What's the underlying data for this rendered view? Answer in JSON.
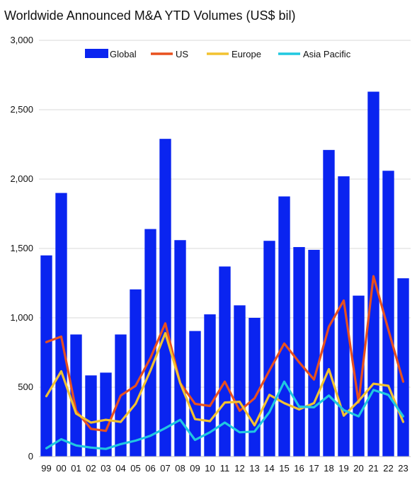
{
  "chart_data": {
    "type": "bar",
    "title": "Worldwide Announced M&A YTD Volumes (US$ bil)",
    "xlabel": "",
    "ylabel": "",
    "ylim": [
      0,
      3000
    ],
    "yticks": [
      0,
      500,
      1000,
      1500,
      2000,
      2500,
      3000
    ],
    "ytick_labels": [
      "0",
      "500",
      "1,000",
      "1,500",
      "2,000",
      "2,500",
      "3,000"
    ],
    "grid": true,
    "legend": "top",
    "categories": [
      "99",
      "00",
      "01",
      "02",
      "03",
      "04",
      "05",
      "06",
      "07",
      "08",
      "09",
      "10",
      "11",
      "12",
      "13",
      "14",
      "15",
      "16",
      "17",
      "18",
      "19",
      "20",
      "21",
      "22",
      "23"
    ],
    "series": [
      {
        "name": "Global",
        "kind": "bar",
        "color": "#0a24f0",
        "values": [
          1450,
          1900,
          880,
          585,
          605,
          880,
          1205,
          1640,
          2290,
          1560,
          905,
          1025,
          1370,
          1090,
          1000,
          1555,
          1875,
          1510,
          1490,
          2210,
          2020,
          1160,
          2630,
          2060,
          1285
        ]
      },
      {
        "name": "US",
        "kind": "line",
        "color": "#e8501e",
        "values": [
          825,
          865,
          330,
          200,
          185,
          440,
          510,
          710,
          960,
          530,
          380,
          365,
          540,
          330,
          420,
          620,
          815,
          680,
          555,
          935,
          1125,
          390,
          1300,
          915,
          540
        ]
      },
      {
        "name": "Europe",
        "kind": "line",
        "color": "#f2c230",
        "values": [
          435,
          615,
          310,
          245,
          265,
          250,
          380,
          620,
          890,
          530,
          270,
          255,
          390,
          395,
          225,
          445,
          385,
          340,
          385,
          630,
          295,
          400,
          525,
          510,
          250
        ]
      },
      {
        "name": "Asia Pacific",
        "kind": "line",
        "color": "#20c8e0",
        "values": [
          60,
          125,
          80,
          65,
          55,
          90,
          115,
          150,
          205,
          265,
          120,
          175,
          245,
          175,
          180,
          320,
          540,
          360,
          355,
          440,
          335,
          290,
          480,
          445,
          290
        ]
      }
    ]
  }
}
